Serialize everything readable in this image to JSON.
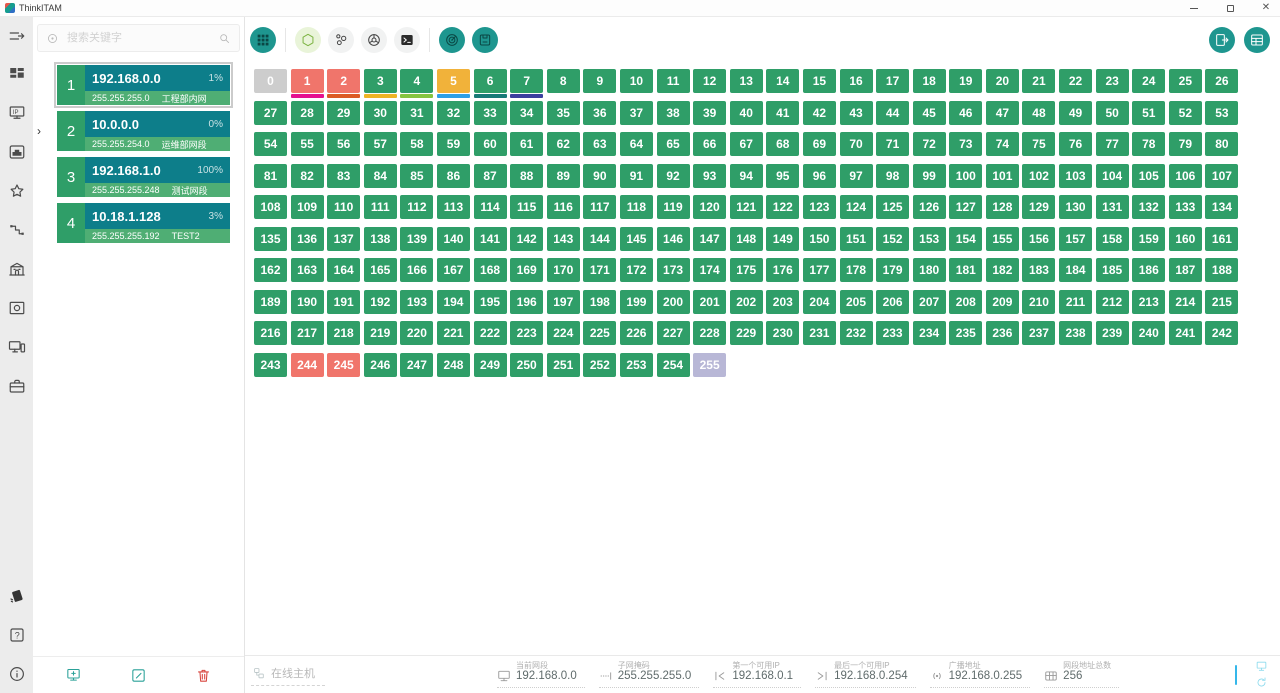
{
  "titlebar": {
    "app_name": "ThinkITAM"
  },
  "rail": {
    "icons": [
      "menu",
      "dashboard",
      "ip-scanner",
      "ethernet-port",
      "star",
      "cable",
      "building",
      "image",
      "devices",
      "briefcase",
      "feedback",
      "help",
      "info"
    ]
  },
  "sidebar": {
    "search": {
      "placeholder": "搜索关键字"
    },
    "networks": [
      {
        "index": "1",
        "ip": "192.168.0.0",
        "usage": "1%",
        "mask": "255.255.255.0",
        "name": "工程部内网",
        "selected": true
      },
      {
        "index": "2",
        "ip": "10.0.0.0",
        "usage": "0%",
        "mask": "255.255.254.0",
        "name": "运维部网段",
        "selected": false
      },
      {
        "index": "3",
        "ip": "192.168.1.0",
        "usage": "100%",
        "mask": "255.255.255.248",
        "name": "测试网段",
        "selected": false
      },
      {
        "index": "4",
        "ip": "10.18.1.128",
        "usage": "3%",
        "mask": "255.255.255.192",
        "name": "TEST2",
        "selected": false
      }
    ],
    "actions": [
      "add-host",
      "edit",
      "delete"
    ]
  },
  "toolbar": {
    "view_buttons": [
      "grid-view",
      "hexagon-view",
      "nodes-view",
      "wheel-view",
      "terminal",
      "scan",
      "report"
    ],
    "right_buttons": [
      "export",
      "table-view"
    ]
  },
  "grid": {
    "columns": 27,
    "total": 256,
    "default_state": "available",
    "states": {
      "available": "#2f9e68",
      "occupied": "#f0756b",
      "gateway": "#f1b23a",
      "network": "#cdcdcd",
      "broadcast": "#b8b7d6"
    },
    "cells": {
      "0": "network",
      "1": "occupied",
      "2": "occupied",
      "5": "gateway",
      "244": "occupied",
      "245": "occupied",
      "255": "broadcast"
    },
    "strips": {
      "1": "#e5118f",
      "2": "#dc5b26",
      "3": "#eeb424",
      "4": "#85c440",
      "5": "#2e9fe6",
      "6": "#177a77",
      "7": "#3c3f9f"
    }
  },
  "statusbar": {
    "online_hosts_label": "在线主机",
    "fields": [
      {
        "icon": "segment",
        "label": "当前网段",
        "value": "192.168.0.0"
      },
      {
        "icon": "mask",
        "label": "子网掩码",
        "value": "255.255.255.0"
      },
      {
        "icon": "first-ip",
        "label": "第一个可用IP",
        "value": "192.168.0.1"
      },
      {
        "icon": "last-ip",
        "label": "最后一个可用IP",
        "value": "192.168.0.254"
      },
      {
        "icon": "broadcast",
        "label": "广播地址",
        "value": "192.168.0.255"
      },
      {
        "icon": "total",
        "label": "网段地址总数",
        "value": "256"
      }
    ]
  },
  "colors": {
    "accent_teal": "#1e968f",
    "header_teal": "#0d7e8a",
    "foot_green": "#4fae74",
    "cell_green": "#2f9e68",
    "cell_salmon": "#f0756b",
    "cell_amber": "#f1b23a",
    "cell_gray": "#cdcdcd",
    "cell_lavender": "#b8b7d6",
    "delete_red": "#d8453e",
    "cyan": "#35b7ea"
  }
}
